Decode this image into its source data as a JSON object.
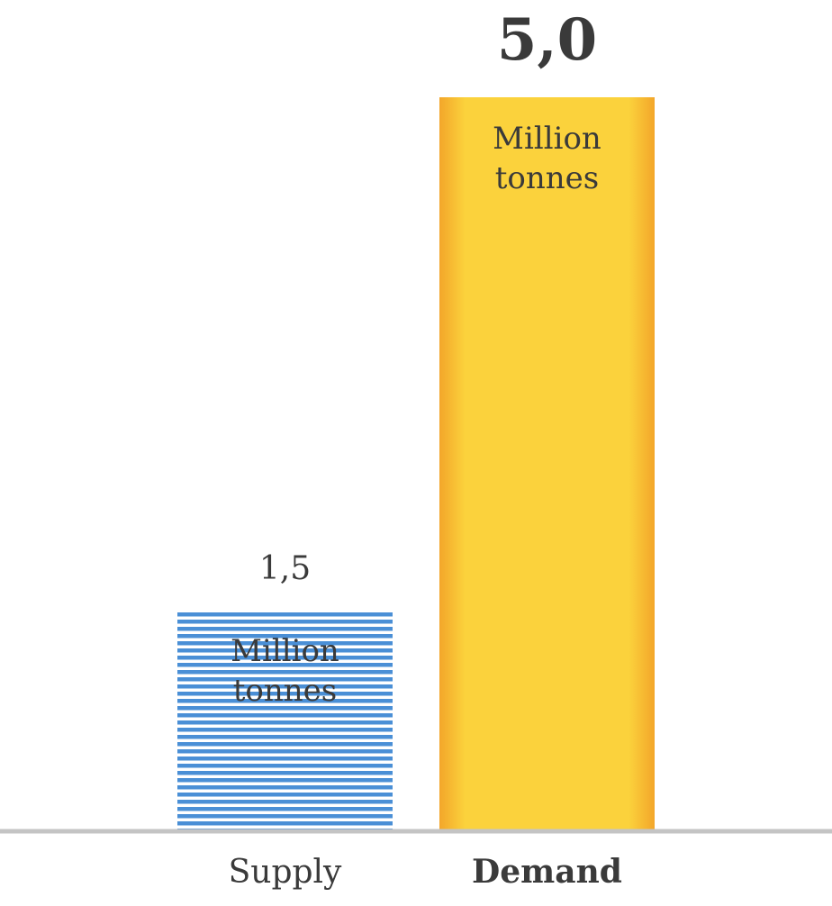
{
  "chart_data": {
    "type": "bar",
    "categories": [
      "Supply",
      "Demand"
    ],
    "values": [
      1.5,
      5.0
    ],
    "value_labels": [
      "1,5",
      "5,0"
    ],
    "unit_label": "Million tonnes",
    "colors": [
      "#4a8fd6",
      "#f3a62a"
    ],
    "ylim": [
      0,
      5.0
    ]
  }
}
